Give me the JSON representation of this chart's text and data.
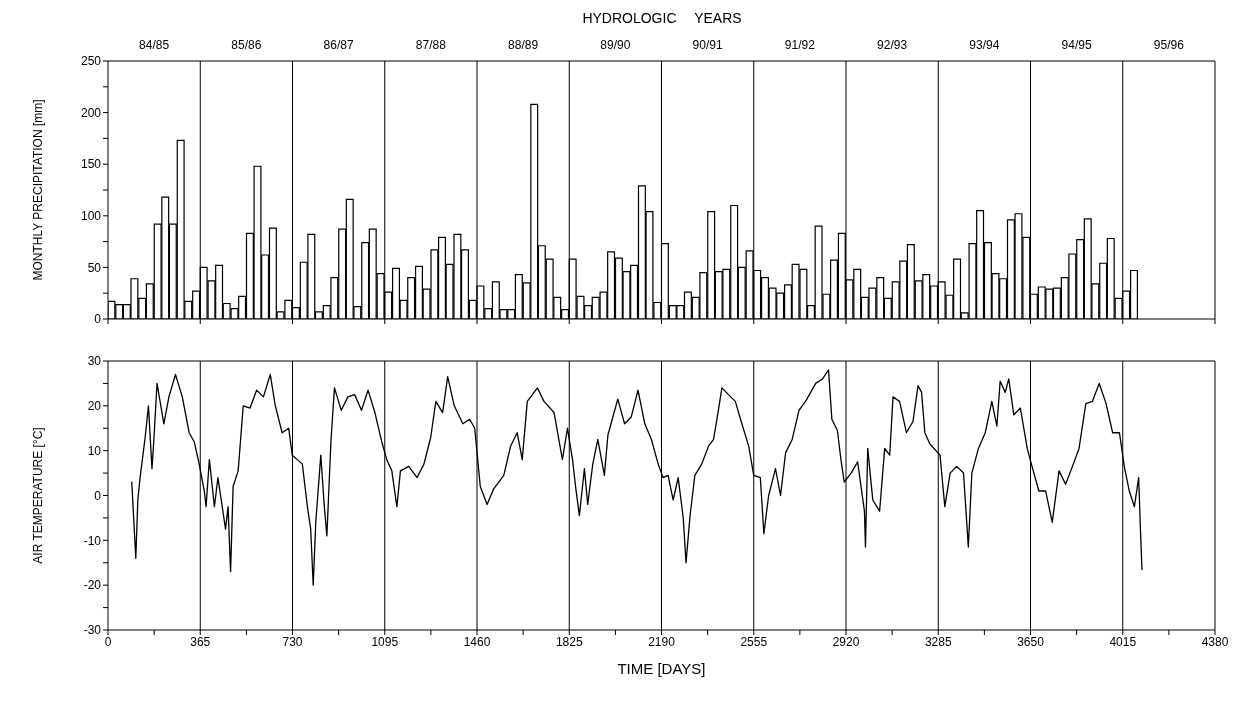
{
  "chart_data": [
    {
      "type": "bar",
      "tick_labels": "y",
      "title": "HYDROLOGIC YEARS",
      "ylabel": "MONTHLY PRECIPITATION [mm]",
      "color": "#000000",
      "x": [
        15,
        46,
        76,
        106,
        137,
        167,
        198,
        228,
        258,
        289,
        319,
        350,
        380,
        411,
        441,
        471,
        502,
        532,
        563,
        593,
        623,
        654,
        684,
        715,
        745,
        776,
        806,
        836,
        867,
        897,
        928,
        958,
        988,
        1019,
        1049,
        1080,
        1110,
        1141,
        1171,
        1201,
        1232,
        1262,
        1293,
        1323,
        1353,
        1384,
        1414,
        1445,
        1475,
        1506,
        1536,
        1566,
        1597,
        1627,
        1658,
        1688,
        1718,
        1749,
        1779,
        1810,
        1840,
        1871,
        1901,
        1931,
        1962,
        1992,
        2023,
        2053,
        2083,
        2114,
        2144,
        2175,
        2205,
        2236,
        2266,
        2296,
        2327,
        2357,
        2388,
        2418,
        2448,
        2479,
        2509,
        2540,
        2570,
        2601,
        2631,
        2661,
        2692,
        2722,
        2753,
        2783,
        2813,
        2844,
        2874,
        2905,
        2935,
        2966,
        2996,
        3026,
        3057,
        3087,
        3118,
        3148,
        3178,
        3209,
        3239,
        3270,
        3300,
        3331,
        3361,
        3391,
        3422,
        3452,
        3483,
        3513,
        3543,
        3574,
        3604,
        3635,
        3665,
        3696,
        3726,
        3756,
        3787,
        3817,
        3848,
        3878,
        3908,
        3939,
        3969,
        4000,
        4030,
        4061
      ],
      "values": [
        17,
        14,
        14,
        39,
        20,
        34,
        92,
        118,
        92,
        173,
        17,
        27,
        50,
        37,
        52,
        15,
        10,
        22,
        83,
        148,
        62,
        88,
        7,
        18,
        11,
        55,
        82,
        7,
        13,
        40,
        87,
        116,
        12,
        74,
        87,
        44,
        26,
        49,
        18,
        40,
        51,
        29,
        67,
        79,
        53,
        82,
        67,
        18,
        32,
        10,
        36,
        9,
        9,
        43,
        35,
        208,
        71,
        58,
        21,
        9,
        58,
        22,
        13,
        21,
        26,
        65,
        59,
        46,
        52,
        129,
        104,
        16,
        73,
        13,
        13,
        26,
        21,
        45,
        104,
        46,
        48,
        110,
        50,
        66,
        47,
        40,
        30,
        25,
        33,
        53,
        48,
        13,
        90,
        24,
        57,
        83,
        38,
        48,
        21,
        30,
        40,
        20,
        36,
        56,
        72,
        37,
        43,
        32,
        36,
        23,
        58,
        6,
        73,
        105,
        74,
        44,
        39,
        96,
        102,
        79,
        24,
        31,
        29,
        30,
        40,
        63,
        77,
        97,
        34,
        54,
        78,
        20,
        27,
        47
      ],
      "xlim": [
        0,
        4380
      ],
      "xticks": [
        {
          "value": 0,
          "label": null
        },
        {
          "value": 365,
          "label": null
        },
        {
          "value": 730,
          "label": null
        },
        {
          "value": 1095,
          "label": null
        },
        {
          "value": 1460,
          "label": null
        },
        {
          "value": 1825,
          "label": null
        },
        {
          "value": 2190,
          "label": null
        },
        {
          "value": 2555,
          "label": null
        },
        {
          "value": 2920,
          "label": null
        },
        {
          "value": 3285,
          "label": null
        },
        {
          "value": 3650,
          "label": null
        },
        {
          "value": 4015,
          "label": null
        },
        {
          "value": 4380,
          "label": null
        }
      ],
      "annotations": [
        "84/85",
        "85/86",
        "86/87",
        "87/88",
        "88/89",
        "89/90",
        "90/91",
        "91/92",
        "92/93",
        "93/94",
        "94/95",
        "95/96"
      ],
      "ylim": [
        0,
        250
      ],
      "yticks": [
        0,
        {
          "value": 25,
          "label": null
        },
        50,
        {
          "value": 75,
          "label": null
        },
        100,
        {
          "value": 125,
          "label": null
        },
        150,
        {
          "value": 175,
          "label": null
        },
        200,
        {
          "value": 225,
          "label": null
        },
        250
      ],
      "ref_lines": [
        {
          "axis": "x",
          "value": 365,
          "color": "#000000"
        },
        {
          "axis": "x",
          "value": 730,
          "color": "#000000"
        },
        {
          "axis": "x",
          "value": 1095,
          "color": "#000000"
        },
        {
          "axis": "x",
          "value": 1460,
          "color": "#000000"
        },
        {
          "axis": "x",
          "value": 1825,
          "color": "#000000"
        },
        {
          "axis": "x",
          "value": 2190,
          "color": "#000000"
        },
        {
          "axis": "x",
          "value": 2555,
          "color": "#000000"
        },
        {
          "axis": "x",
          "value": 2920,
          "color": "#000000"
        },
        {
          "axis": "x",
          "value": 3285,
          "color": "#000000"
        },
        {
          "axis": "x",
          "value": 3650,
          "color": "#000000"
        },
        {
          "axis": "x",
          "value": 4015,
          "color": "#000000"
        }
      ]
    },
    {
      "type": "line",
      "xlabel": "TIME [DAYS]",
      "ylabel": "AIR TEMPERATURE [°C]",
      "color": "#000000",
      "x": [
        94,
        110,
        118,
        127,
        147,
        160,
        174,
        181,
        194,
        221,
        241,
        267,
        294,
        321,
        341,
        361,
        381,
        388,
        401,
        421,
        435,
        465,
        475,
        485,
        495,
        515,
        535,
        562,
        588,
        615,
        642,
        662,
        689,
        715,
        729,
        749,
        769,
        789,
        802,
        812,
        822,
        842,
        856,
        866,
        882,
        896,
        923,
        949,
        976,
        1003,
        1029,
        1056,
        1083,
        1103,
        1123,
        1143,
        1157,
        1190,
        1223,
        1250,
        1277,
        1297,
        1324,
        1344,
        1370,
        1404,
        1431,
        1451,
        1473,
        1500,
        1526,
        1566,
        1593,
        1619,
        1639,
        1659,
        1699,
        1725,
        1765,
        1798,
        1818,
        1838,
        1851,
        1865,
        1885,
        1898,
        1918,
        1938,
        1964,
        1978,
        2017,
        2044,
        2070,
        2097,
        2124,
        2150,
        2177,
        2196,
        2216,
        2236,
        2256,
        2276,
        2287,
        2303,
        2322,
        2349,
        2376,
        2396,
        2415,
        2429,
        2455,
        2482,
        2508,
        2535,
        2555,
        2581,
        2595,
        2614,
        2641,
        2661,
        2681,
        2707,
        2734,
        2760,
        2800,
        2827,
        2851,
        2864,
        2886,
        2900,
        2913,
        2940,
        2966,
        2993,
        2997,
        3006,
        3026,
        3053,
        3073,
        3093,
        3106,
        3132,
        3159,
        3185,
        3205,
        3219,
        3232,
        3252,
        3292,
        3311,
        3332,
        3358,
        3385,
        3404,
        3418,
        3444,
        3471,
        3497,
        3517,
        3530,
        3550,
        3564,
        3584,
        3610,
        3637,
        3656,
        3683,
        3710,
        3736,
        3763,
        3789,
        3816,
        3842,
        3869,
        3895,
        3922,
        3949,
        3975,
        4002,
        4021,
        4041,
        4061,
        4078,
        4084,
        4091
      ],
      "values": [
        3,
        -14,
        -1,
        4,
        13,
        20,
        6,
        12,
        25,
        16,
        22,
        27,
        22,
        14,
        12,
        7,
        1,
        -2.5,
        8,
        -2.5,
        4,
        -7.5,
        -2.5,
        -17,
        2,
        5.5,
        20,
        19.5,
        23.5,
        22,
        27,
        20,
        14,
        15,
        9,
        8,
        7,
        -2.5,
        -7.5,
        -20,
        -6,
        9,
        -2.5,
        -9,
        12,
        24,
        19,
        22,
        22.5,
        19,
        23.5,
        18.5,
        12,
        8,
        5.5,
        -2.5,
        5.5,
        6.5,
        4,
        7,
        13,
        21,
        18.5,
        26.5,
        20,
        16,
        17,
        15,
        2,
        -2,
        1.5,
        4.5,
        11,
        14,
        8,
        21,
        24,
        21,
        18.5,
        8,
        15,
        8,
        1.5,
        -4.5,
        6,
        -2,
        7,
        12.5,
        4.5,
        13.5,
        21.5,
        16,
        17.5,
        23.5,
        16,
        12.5,
        7,
        4,
        4.5,
        -1,
        4,
        -5,
        -15,
        -4.5,
        4.5,
        7,
        11,
        12.5,
        19,
        24,
        22.5,
        21,
        16,
        11,
        4.5,
        4,
        -8.5,
        0,
        6,
        0,
        9.5,
        12.5,
        19,
        21,
        25,
        26,
        28,
        17,
        14.5,
        8,
        3,
        5,
        7.5,
        -3.5,
        -11.5,
        10.5,
        -1,
        -3.5,
        10.5,
        9,
        22,
        21,
        14,
        16.5,
        24.5,
        23,
        14,
        11.5,
        9,
        -2.5,
        5,
        6.5,
        5,
        -11.5,
        5,
        10.5,
        14,
        21,
        15.5,
        25.5,
        23,
        26,
        18,
        19.5,
        10.5,
        6.5,
        1,
        1,
        -6,
        5.5,
        2.5,
        6.5,
        10.5,
        20.5,
        21,
        25,
        20.5,
        14,
        14,
        6.5,
        1,
        -2.5,
        4,
        -6,
        -16.5
      ],
      "xlim": [
        0,
        4380
      ],
      "xticks": [
        0,
        {
          "value": 182.5,
          "label": null
        },
        365,
        {
          "value": 547.5,
          "label": null
        },
        730,
        {
          "value": 912.5,
          "label": null
        },
        1095,
        {
          "value": 1277.5,
          "label": null
        },
        1460,
        {
          "value": 1642.5,
          "label": null
        },
        1825,
        {
          "value": 2007.5,
          "label": null
        },
        2190,
        {
          "value": 2372.5,
          "label": null
        },
        2555,
        {
          "value": 2737.5,
          "label": null
        },
        2920,
        {
          "value": 3102.5,
          "label": null
        },
        3285,
        {
          "value": 3467.5,
          "label": null
        },
        3650,
        {
          "value": 3832.5,
          "label": null
        },
        4015,
        {
          "value": 4197.5,
          "label": null
        },
        4380
      ],
      "ylim": [
        -30,
        30
      ],
      "yticks": [
        -30,
        {
          "value": -25,
          "label": null
        },
        -20,
        {
          "value": -15,
          "label": null
        },
        -10,
        {
          "value": -5,
          "label": null
        },
        0,
        {
          "value": 5,
          "label": null
        },
        10,
        {
          "value": 15,
          "label": null
        },
        20,
        {
          "value": 25,
          "label": null
        },
        30
      ],
      "ref_lines": [
        {
          "axis": "x",
          "value": 365,
          "color": "#000000"
        },
        {
          "axis": "x",
          "value": 730,
          "color": "#000000"
        },
        {
          "axis": "x",
          "value": 1095,
          "color": "#000000"
        },
        {
          "axis": "x",
          "value": 1460,
          "color": "#000000"
        },
        {
          "axis": "x",
          "value": 1825,
          "color": "#000000"
        },
        {
          "axis": "x",
          "value": 2190,
          "color": "#000000"
        },
        {
          "axis": "x",
          "value": 2555,
          "color": "#000000"
        },
        {
          "axis": "x",
          "value": 2920,
          "color": "#000000"
        },
        {
          "axis": "x",
          "value": 3285,
          "color": "#000000"
        },
        {
          "axis": "x",
          "value": 3650,
          "color": "#000000"
        },
        {
          "axis": "x",
          "value": 4015,
          "color": "#000000"
        }
      ]
    }
  ]
}
